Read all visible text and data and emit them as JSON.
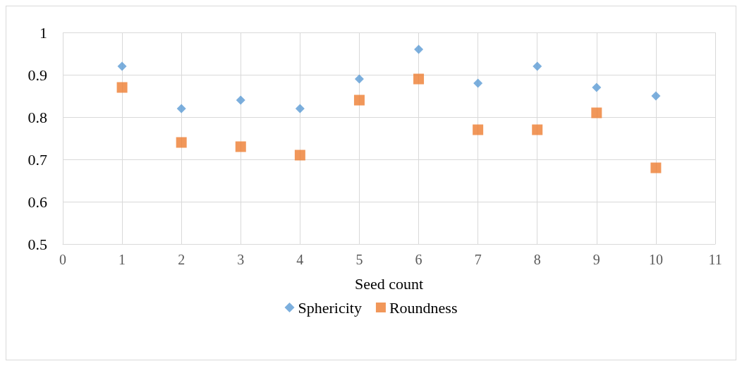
{
  "chart_data": {
    "type": "scatter",
    "xlabel": "Seed count",
    "x": [
      1,
      2,
      3,
      4,
      5,
      6,
      7,
      8,
      9,
      10
    ],
    "series": [
      {
        "name": "Sphericity",
        "color": "#5b9bd5",
        "marker": "diamond",
        "values": [
          0.92,
          0.82,
          0.84,
          0.82,
          0.89,
          0.96,
          0.88,
          0.92,
          0.87,
          0.85
        ]
      },
      {
        "name": "Roundness",
        "color": "#ed7d31",
        "marker": "square",
        "values": [
          0.87,
          0.74,
          0.73,
          0.71,
          0.84,
          0.89,
          0.77,
          0.77,
          0.81,
          0.68
        ]
      }
    ],
    "xlim": [
      0,
      11
    ],
    "xticks": [
      0,
      1,
      2,
      3,
      4,
      5,
      6,
      7,
      8,
      9,
      10,
      11
    ],
    "ylim": [
      0.5,
      1
    ],
    "yticks": [
      0.5,
      0.6,
      0.7,
      0.8,
      0.9,
      1
    ],
    "grid": true,
    "legend": "bottom"
  }
}
